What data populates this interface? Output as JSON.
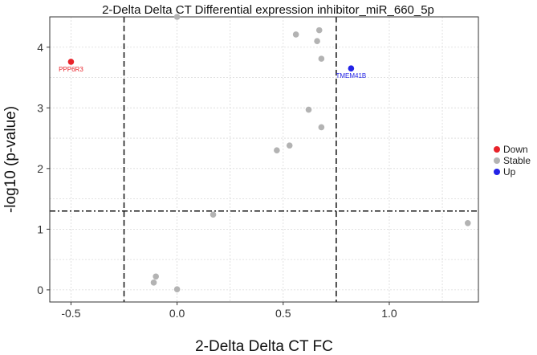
{
  "chart_data": {
    "type": "scatter",
    "title": "2-Delta Delta CT Differential expression inhibitor_miR_660_5p",
    "xlabel": "2-Delta Delta CT FC",
    "ylabel": "-log10 (p-value)",
    "xlim": [
      -0.6,
      1.42
    ],
    "ylim": [
      -0.2,
      4.5
    ],
    "xticks": [
      -0.5,
      0.0,
      0.5,
      1.0
    ],
    "xtick_labels": [
      "-0.5",
      "0.0",
      "0.5",
      "1.0"
    ],
    "yticks": [
      0,
      1,
      2,
      3,
      4
    ],
    "ytick_labels": [
      "0",
      "1",
      "2",
      "3",
      "4"
    ],
    "grid": true,
    "thresholds": {
      "x": [
        -0.25,
        0.75
      ],
      "y": 1.3
    },
    "legend": {
      "position": "right",
      "entries": [
        {
          "name": "Down",
          "color": "#e8232a"
        },
        {
          "name": "Stable",
          "color": "#b3b3b3"
        },
        {
          "name": "Up",
          "color": "#2323e6"
        }
      ]
    },
    "points": [
      {
        "x": -0.5,
        "y": 3.76,
        "group": "Down",
        "label": "PPP6R3"
      },
      {
        "x": 0.82,
        "y": 3.65,
        "group": "Up",
        "label": "TMEM41B"
      },
      {
        "x": 0.0,
        "y": 4.5,
        "group": "Stable",
        "label": ""
      },
      {
        "x": 0.56,
        "y": 4.21,
        "group": "Stable",
        "label": ""
      },
      {
        "x": 0.67,
        "y": 4.28,
        "group": "Stable",
        "label": ""
      },
      {
        "x": 0.66,
        "y": 4.1,
        "group": "Stable",
        "label": ""
      },
      {
        "x": 0.68,
        "y": 3.81,
        "group": "Stable",
        "label": ""
      },
      {
        "x": 0.62,
        "y": 2.97,
        "group": "Stable",
        "label": ""
      },
      {
        "x": 0.68,
        "y": 2.68,
        "group": "Stable",
        "label": ""
      },
      {
        "x": 0.53,
        "y": 2.38,
        "group": "Stable",
        "label": ""
      },
      {
        "x": 0.47,
        "y": 2.3,
        "group": "Stable",
        "label": ""
      },
      {
        "x": 0.17,
        "y": 1.24,
        "group": "Stable",
        "label": ""
      },
      {
        "x": 1.37,
        "y": 1.1,
        "group": "Stable",
        "label": ""
      },
      {
        "x": -0.1,
        "y": 0.22,
        "group": "Stable",
        "label": ""
      },
      {
        "x": -0.11,
        "y": 0.12,
        "group": "Stable",
        "label": ""
      },
      {
        "x": 0.0,
        "y": 0.01,
        "group": "Stable",
        "label": ""
      }
    ]
  }
}
